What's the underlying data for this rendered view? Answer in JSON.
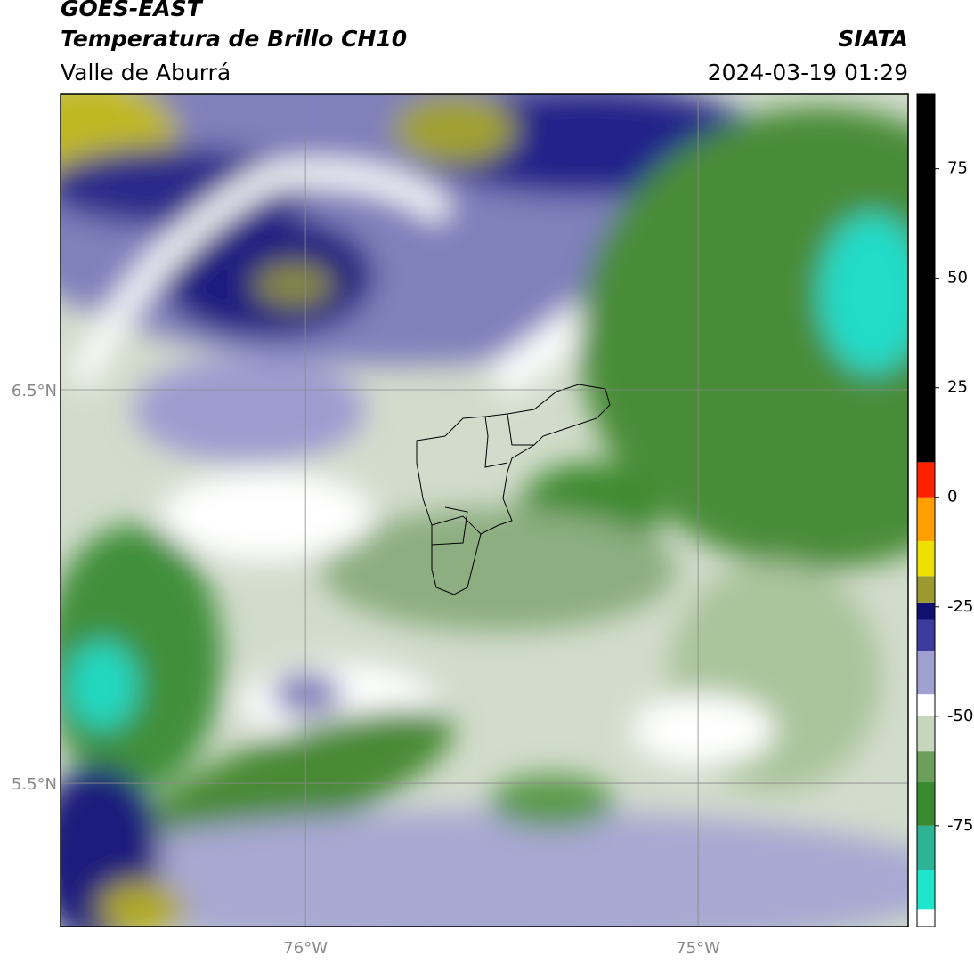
{
  "header": {
    "product": "GOES-EAST",
    "title": "Temperatura de Brillo CH10",
    "region": "Valle de Aburrá",
    "source": "SIATA",
    "datetime": "2024-03-19 01:29"
  },
  "map": {
    "xlim": [
      -76.624,
      -74.465
    ],
    "ylim": [
      5.136,
      7.251
    ],
    "xticks": [
      {
        "value": -76,
        "label": "76°W"
      },
      {
        "value": -75,
        "label": "75°W"
      }
    ],
    "yticks": [
      {
        "value": 6.5,
        "label": "6.5°N"
      },
      {
        "value": 5.5,
        "label": "5.5°N"
      }
    ],
    "grid": true
  },
  "colorbar": {
    "lim": [
      -98,
      92
    ],
    "ticks": [
      75,
      50,
      25,
      0,
      -25,
      -50,
      -75
    ],
    "segments": [
      {
        "value": -98,
        "color": "#ffffff"
      },
      {
        "value": -94,
        "color": "#1ee6cc"
      },
      {
        "value": -85,
        "color": "#2cb494"
      },
      {
        "value": -75,
        "color": "#3a8a30"
      },
      {
        "value": -65,
        "color": "#6c9e5c"
      },
      {
        "value": -58,
        "color": "#c6d6bc"
      },
      {
        "value": -50,
        "color": "#ffffff"
      },
      {
        "value": -45,
        "color": "#a0a0d0"
      },
      {
        "value": -35,
        "color": "#3c3c9c"
      },
      {
        "value": -28,
        "color": "#10106e"
      },
      {
        "value": -24,
        "color": "#9a9a30"
      },
      {
        "value": -18,
        "color": "#f0e000"
      },
      {
        "value": -10,
        "color": "#ffa000"
      },
      {
        "value": 0,
        "color": "#ff2000"
      },
      {
        "value": 8,
        "color": "#000000"
      }
    ]
  }
}
